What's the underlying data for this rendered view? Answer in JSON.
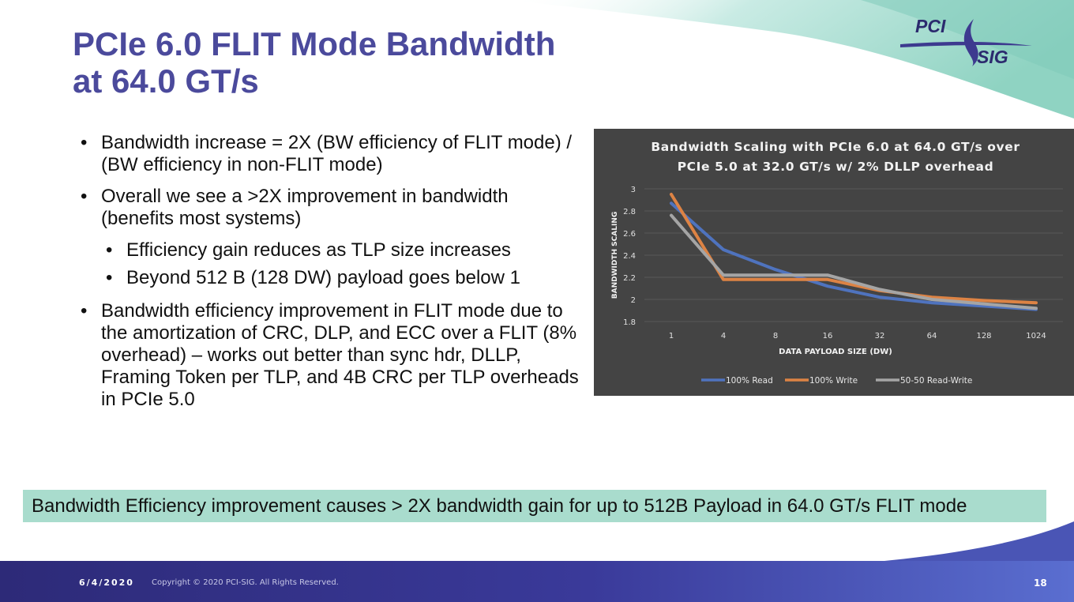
{
  "slide": {
    "title_line1": "PCIe 6.0 FLIT Mode Bandwidth",
    "title_line2": "at 64.0 GT/s",
    "logo_text": "PCI SIG",
    "bullets": [
      {
        "text": "Bandwidth increase = 2X (BW efficiency of FLIT mode) / (BW efficiency in non-FLIT mode)"
      },
      {
        "text": "Overall we see a >2X improvement in bandwidth (benefits most systems)",
        "subs": [
          "Efficiency gain reduces as TLP size increases",
          "Beyond 512 B (128 DW) payload goes below 1"
        ]
      },
      {
        "text": "Bandwidth efficiency improvement in FLIT mode due to the amortization of  CRC, DLP, and ECC over a FLIT (8% overhead) – works out better than sync hdr, DLLP, Framing Token per TLP, and 4B CRC per TLP overheads in PCIe 5.0"
      }
    ],
    "banner": "Bandwidth Efficiency improvement causes > 2X bandwidth gain for up to 512B Payload in 64.0 GT/s FLIT mode",
    "footer": {
      "date": "6/4/2020",
      "copyright": "Copyright © 2020 PCI-SIG. All Rights Reserved.",
      "page": "18"
    }
  },
  "colors": {
    "title": "#4b4a9c",
    "chart_bg": "#444444",
    "banner_bg": "#a9dccd",
    "read": "#4f73be",
    "write": "#dd8344",
    "read_write": "#a5a5a5"
  },
  "chart_data": {
    "type": "line",
    "title": "Bandwidth Scaling with PCIe 6.0 at 64.0 GT/s over PCIe 5.0 at 32.0 GT/s w/ 2% DLLP overhead",
    "xlabel": "DATA PAYLOAD SIZE (DW)",
    "ylabel": "BANDWIDTH SCALING",
    "categories": [
      "1",
      "4",
      "8",
      "16",
      "32",
      "64",
      "128",
      "1024"
    ],
    "ylim": [
      1.8,
      3
    ],
    "yticks": [
      "1.8",
      "2",
      "2.2",
      "2.4",
      "2.6",
      "2.8",
      "3"
    ],
    "grid": true,
    "legend_position": "bottom",
    "series": [
      {
        "name": "100% Read",
        "color": "#4f73be",
        "values": [
          2.87,
          2.45,
          2.27,
          2.12,
          2.02,
          1.97,
          1.94,
          1.91
        ]
      },
      {
        "name": "100% Write",
        "color": "#dd8344",
        "values": [
          2.95,
          2.18,
          2.18,
          2.18,
          2.08,
          2.02,
          1.99,
          1.97
        ]
      },
      {
        "name": "50-50 Read-Write",
        "color": "#a5a5a5",
        "values": [
          2.76,
          2.22,
          2.22,
          2.22,
          2.09,
          2.0,
          1.96,
          1.92
        ]
      }
    ]
  }
}
